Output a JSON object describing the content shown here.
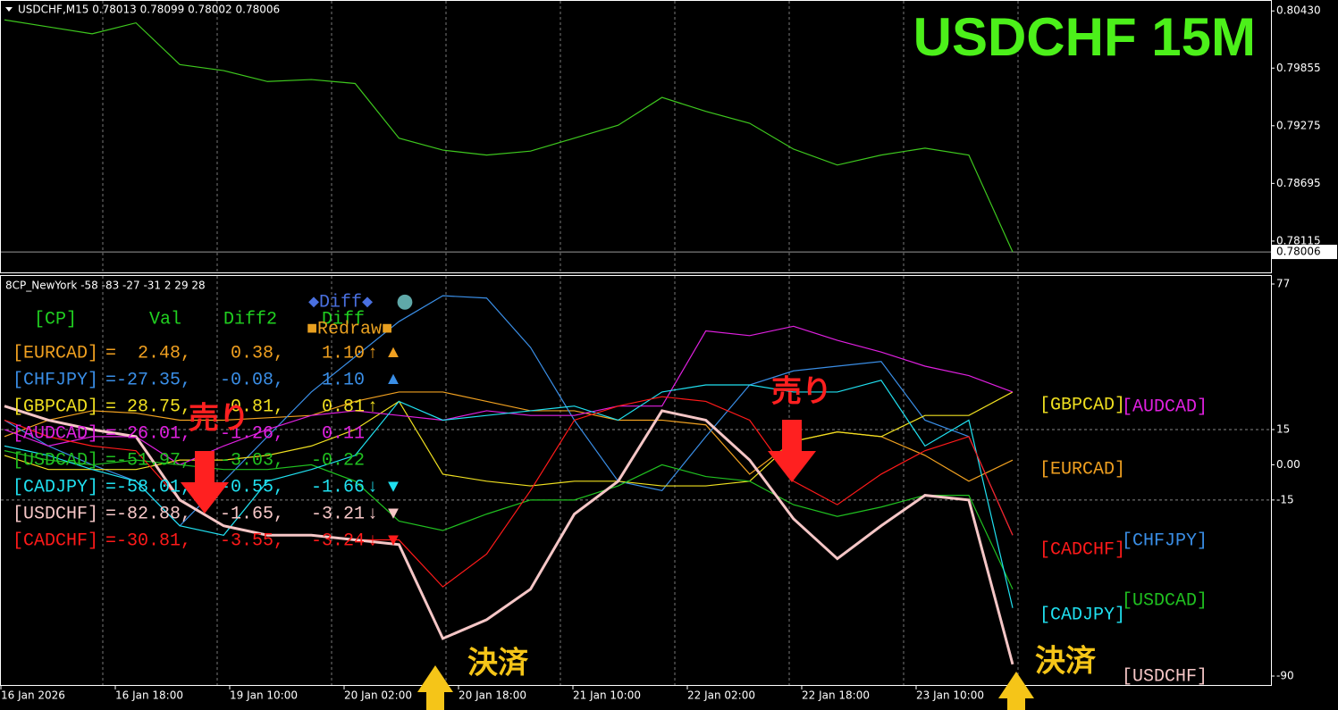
{
  "chart_data": [
    {
      "type": "line",
      "title": "USDCHF,M15  0.78013 0.78099 0.78002 0.78006",
      "annotation": "USDCHF 15M",
      "ylim": [
        0.778,
        0.8054
      ],
      "yticks": [
        {
          "value": 0.8043,
          "label": "0.80430"
        },
        0.79855,
        0.79275,
        0.78695,
        0.78115
      ],
      "last_price": 0.78006,
      "grid": true,
      "series": [
        {
          "name": "USDCHF",
          "color": "#3ec81e",
          "values": [
            0.8034,
            0.8027,
            0.802,
            0.8031,
            0.7989,
            0.7983,
            0.7972,
            0.7974,
            0.797,
            0.7915,
            0.7903,
            0.7898,
            0.7902,
            0.7915,
            0.7928,
            0.7956,
            0.7942,
            0.793,
            0.7904,
            0.7888,
            0.7898,
            0.7905,
            0.7898,
            0.78006
          ]
        }
      ]
    },
    {
      "type": "line",
      "title": "8CP_NewYork -58 -83 -27 -31 2 29 28",
      "ylim": [
        -93.8,
        80.8
      ],
      "yticks": [
        77,
        15,
        {
          "value": 0,
          "label": "0.00"
        },
        -15,
        -90
      ],
      "levels": [
        15,
        -15
      ],
      "grid": true,
      "x_labels": [
        "16 Jan 2026",
        "16 Jan 18:00",
        "19 Jan 10:00",
        "20 Jan 02:00",
        "20 Jan 18:00",
        "21 Jan 10:00",
        "22 Jan 02:00",
        "22 Jan 18:00",
        "23 Jan 10:00"
      ],
      "series": [
        {
          "name": "[EURCAD]",
          "color": "#f0a020",
          "values": [
            12,
            19,
            23,
            22,
            19,
            19,
            20,
            21,
            27,
            31,
            31,
            27,
            23,
            23,
            19,
            19,
            17,
            -4,
            10,
            14,
            12,
            4,
            -7,
            2
          ]
        },
        {
          "name": "[CHFJPY]",
          "color": "#3a8ee6",
          "values": [
            19,
            8,
            0,
            -7,
            -26,
            -7,
            12,
            31,
            46,
            61,
            72,
            71,
            50,
            19,
            -7,
            -11,
            12,
            34,
            40,
            42,
            44,
            19,
            12,
            -30
          ]
        },
        {
          "name": "[GBPCAD]",
          "color": "#f0e020",
          "values": [
            4,
            -2,
            -2,
            -2,
            2,
            2,
            4,
            8,
            15,
            27,
            -4,
            -7,
            -9,
            -7,
            -7,
            -9,
            -9,
            -7,
            10,
            14,
            12,
            21,
            21,
            31
          ]
        },
        {
          "name": "[AUDCAD]",
          "color": "#e020e0",
          "values": [
            15,
            8,
            12,
            12,
            0,
            8,
            15,
            21,
            23,
            21,
            19,
            23,
            21,
            21,
            25,
            25,
            57,
            55,
            59,
            53,
            48,
            42,
            38,
            31
          ]
        },
        {
          "name": "[USDCAD]",
          "color": "#20c020",
          "values": [
            6,
            2,
            0,
            2,
            0,
            -2,
            -2,
            0,
            -7,
            -24,
            -28,
            -21,
            -15,
            -15,
            -9,
            0,
            -5,
            -7,
            -17,
            -22,
            -18,
            -13,
            -13,
            -53
          ]
        },
        {
          "name": "[CADJPY]",
          "color": "#20e0f0",
          "values": [
            8,
            4,
            -2,
            -7,
            -26,
            -30,
            -7,
            -2,
            4,
            27,
            19,
            21,
            23,
            25,
            19,
            31,
            34,
            34,
            31,
            31,
            36,
            8,
            19,
            -61
          ]
        },
        {
          "name": "[USDCHF]",
          "color": "#f5c6c6",
          "bold": true,
          "values": [
            25,
            19,
            15,
            12,
            -15,
            -26,
            -30,
            -30,
            -32,
            -34,
            -74,
            -66,
            -53,
            -21,
            -7,
            23,
            19,
            2,
            -23,
            -40,
            -26,
            -13,
            -15,
            -85
          ]
        },
        {
          "name": "[CADCHF]",
          "color": "#ff1a1a",
          "values": [
            19,
            12,
            8,
            6,
            -15,
            -26,
            -30,
            -30,
            -32,
            -32,
            -52,
            -38,
            -11,
            19,
            25,
            29,
            27,
            19,
            -7,
            -17,
            -4,
            6,
            12,
            -30
          ]
        }
      ]
    }
  ],
  "table": {
    "header": [
      "[CP]",
      "Val",
      "Diff2",
      "Diff"
    ],
    "rows": [
      {
        "color": "#f0a020",
        "cells": [
          "[EURCAD]",
          "=",
          "2.48,",
          "0.38,",
          "1.10"
        ],
        "arrow": "↑",
        "mark": "▲"
      },
      {
        "color": "#3a8ee6",
        "cells": [
          "[CHFJPY]",
          "=",
          "-27.35,",
          "-0.08,",
          "1.10"
        ],
        "mark": "▲"
      },
      {
        "color": "#f0e020",
        "cells": [
          "[GBPCAD]",
          "=",
          "28.75,",
          "0.81,",
          "0.81"
        ],
        "arrow": "↑"
      },
      {
        "color": "#e020e0",
        "cells": [
          "[AUDCAD]",
          "=",
          "26.01,",
          "-1.26,",
          "0.11"
        ]
      },
      {
        "color": "#20c020",
        "cells": [
          "[USDCAD]",
          "=",
          "-51.97,",
          "-3.03,",
          "-0.22"
        ]
      },
      {
        "color": "#20e0f0",
        "cells": [
          "[CADJPY]",
          "=",
          "-58.01,",
          "-0.55,",
          "-1.66"
        ],
        "arrow": "↓",
        "mark": "▼"
      },
      {
        "color": "#f5c6c6",
        "cells": [
          "[USDCHF]",
          "=",
          "-82.88,",
          "-1.65,",
          "-3.21"
        ],
        "arrow": "↓",
        "mark": "▼"
      },
      {
        "color": "#ff1a1a",
        "cells": [
          "[CADCHF]",
          "=",
          "-30.81,",
          "-3.55,",
          "-3.24"
        ],
        "arrow": "↓",
        "mark": "▼"
      }
    ]
  },
  "controls": {
    "diff_button": "◆Diff◆",
    "toggle": "●",
    "redraw_button": "■Redraw■"
  },
  "annotations": [
    "売り",
    "売り",
    "決済",
    "決済"
  ]
}
